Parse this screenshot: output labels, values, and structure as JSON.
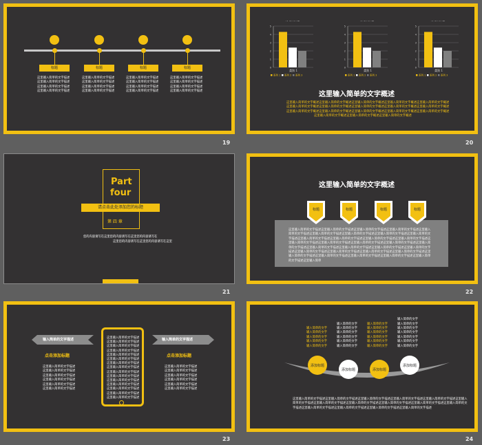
{
  "slides": {
    "s19": {
      "page": "19",
      "labels": [
        "标题",
        "标题",
        "标题",
        "标题"
      ],
      "desc": "这里输入简单的文字描述",
      "icons": [
        "gear-icon",
        "people-icon",
        "search-icon",
        "location-icon"
      ]
    },
    "s20": {
      "page": "20",
      "chart_title": "添加标题",
      "category": "类别 1",
      "legend": [
        "系列 1",
        "系列 2",
        "系列 3"
      ],
      "y_ticks": [
        "5",
        "4",
        "3",
        "2",
        "1",
        "0"
      ],
      "heading": "这里输入简单的文字概述",
      "para": [
        "这里输入简单的文字概述这里输入简单的文字概述这里输入简单的文字概述这里输入简单的文字概述这里输入简单的文字概述",
        "这里输入简单的文字概述这里输入简单的文字概述这里输入简单的文字概述这里输入简单的文字概述这里输入简单的文字概述",
        "这里输入简单的文字概述这里输入简单的文字概述这里输入简单的文字概述这里输入简单的文字概述这里输入简单的文字概述",
        "这里输入简单的文字概述这里输入简单的文字概述这里输入简单的文字概述"
      ]
    },
    "s21": {
      "page": "21",
      "part": "Part",
      "four": "four",
      "subtitle": "请点击此处添加您的标题",
      "chapter": "第 四 章",
      "line1": "您的内容请写在这里您的内容请写在这里您的内容请写在",
      "line2": "这里您的内容请写在这里您的内容请写在这里"
    },
    "s22": {
      "page": "22",
      "heading": "这里输入简单的文字概述",
      "labels": [
        "标题",
        "标题",
        "标题",
        "标题"
      ],
      "para": [
        "这里输入简单的文字描述这里输入简单的文字描述这里输入简单的文字描述这里输入简单的文字描述这里输入",
        "简单的文字描述这里输入简单的文字描述这里输入简单的文字描述这里输入简单的文字描述这里输入简单的文",
        "字描述这里输入简单的文字描述这里输入简单的文字描述这里输入简单的文字描述这里输入简单的文字描述这",
        "里输入简单的文字描述这里输入简单的文字描述这里输入简单的文字描述这里输入简单的文字描述这里输入简",
        "单的文字描述这里输入简单的文字描述这里输入简单的文字描述这里输入简单的文字描述这里输入简单的文字",
        "描述这里输入简单的文字描述这里输入简单的文字描述这里输入简单的文字描述这里输入简单的文字描述这里",
        "输入简单的文字描述这里输入简单的文字描述这里输入简单的文字描述这里输入简单的文字描述这里输入简单",
        "的文字描述这里输入简单"
      ]
    },
    "s23": {
      "page": "23",
      "banner": "输入简单的文字描述",
      "sub": "点击添加标题",
      "left_lines": [
        "这里输入简单的文字描述",
        "这里输入简单的文字描述",
        "这里输入简单的文字描述",
        "这里输入简单的文字描述",
        "这里输入简单的文字描述",
        "这里输入简单的文字描述"
      ],
      "right_lines": [
        "这里输入简单的文字描述",
        "这里输入简单的文字描述",
        "这里输入简单的文字描述",
        "这里输入简单的文字描述",
        "这里输入简单的文字描述",
        "这里输入简单的文字描述"
      ],
      "phone_lines": [
        "这里输入简单的文字描述",
        "这里输入简单的文字描述",
        "这里输入简单的文字描述",
        "这里输入简单的文字描述",
        "这里输入简单的文字描述",
        "这里输入简单的文字描述",
        "这里输入简单的文字描述",
        "这里输入简单的文字描述",
        "这里输入简单的文字描述",
        "这里输入简单的文字描述",
        "这里输入简单的文字描述",
        "这里输入简单的文字描述",
        "这里输入简单的文字描述",
        "这里输入简单的文字描述",
        "这里输入简单的文字描述"
      ]
    },
    "s24": {
      "page": "24",
      "circle_label": "添加标题",
      "col_text": "输入简单的文字",
      "para": [
        "这里输入简单的文字描述这里输入简单的文字描述这里输入简单的文字描述这里输入简单的文字描述这里输入简单的文字描述这里输入",
        "简单的文字描述这里输入简单的文字描述这里输入简单的文字描述这里输入简单的文字描述这里输入简单的文字描述这里输入简单的文",
        "字描述这里输入简单的文字描述这里输入简单的文字描述这里输入简单的文字描述这里输入简单的文字描述"
      ]
    }
  },
  "colors": {
    "accent": "#f2c012",
    "dark": "#333132",
    "bg": "#5f5f5f",
    "bar_white": "#ffffff",
    "bar_gray": "#808080"
  },
  "chart_data": [
    {
      "type": "bar",
      "title": "添加标题",
      "categories": [
        "类别 1"
      ],
      "series": [
        {
          "name": "系列 1",
          "values": [
            4.3
          ]
        },
        {
          "name": "系列 2",
          "values": [
            2.4
          ]
        },
        {
          "name": "系列 3",
          "values": [
            2
          ]
        }
      ],
      "ylim": [
        0,
        5
      ]
    },
    {
      "type": "bar",
      "title": "添加标题",
      "categories": [
        "类别 1"
      ],
      "series": [
        {
          "name": "系列 1",
          "values": [
            4.3
          ]
        },
        {
          "name": "系列 2",
          "values": [
            2.4
          ]
        },
        {
          "name": "系列 3",
          "values": [
            2
          ]
        }
      ],
      "ylim": [
        0,
        5
      ]
    },
    {
      "type": "bar",
      "title": "添加标题",
      "categories": [
        "类别 1"
      ],
      "series": [
        {
          "name": "系列 1",
          "values": [
            4.3
          ]
        },
        {
          "name": "系列 2",
          "values": [
            2.4
          ]
        },
        {
          "name": "系列 3",
          "values": [
            2
          ]
        }
      ],
      "ylim": [
        0,
        5
      ]
    }
  ]
}
